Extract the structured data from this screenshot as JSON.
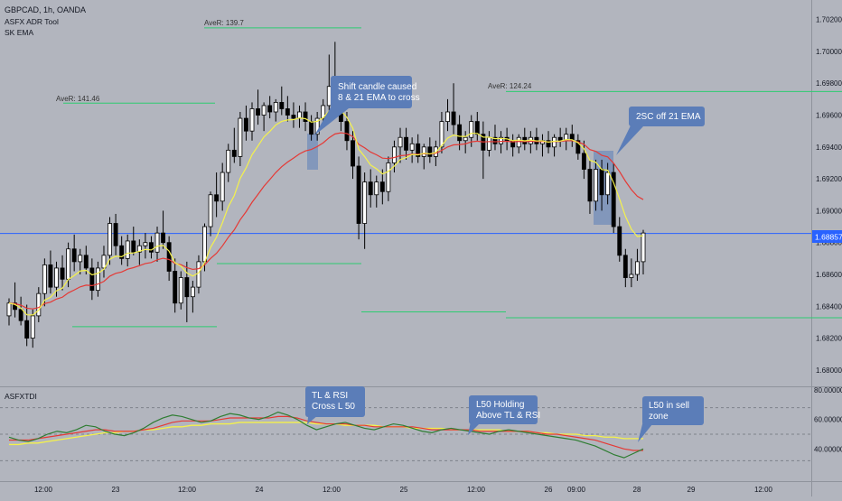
{
  "header": {
    "symbol": "GBPCAD, 1h, OANDA",
    "indicators": [
      "ASFX ADR Tool",
      "SK EMA"
    ]
  },
  "sub_panel": {
    "title": "ASFXTDI"
  },
  "colors": {
    "background": "#b2b5be",
    "candle": "#000000",
    "ema_fast": "#f5f24a",
    "ema_slow": "#e53935",
    "adr_line": "#2ecc71",
    "price_line": "#2962ff",
    "callout": "#5b7db8",
    "highlight": "#5b7db8",
    "rsi_fast": "#2e7d32",
    "rsi_signal": "#e53935",
    "rsi_base": "#f5f24a"
  },
  "annotations": {
    "adr_labels": [
      "AveR: 139.7",
      "AveR: 141.46",
      "AveR: 124.24"
    ],
    "callout_1": [
      "Shift candle caused",
      "8 & 21 EMA to cross"
    ],
    "callout_2": [
      "2SC off 21 EMA"
    ],
    "callout_3": [
      "TL & RSI",
      "Cross L 50"
    ],
    "callout_4": [
      "L50 Holding",
      "Above TL & RSI"
    ],
    "callout_5": [
      "L50 in sell",
      "zone"
    ]
  },
  "chart_data": [
    {
      "type": "candlestick",
      "title": "GBPCAD, 1h, OANDA",
      "price_axis_ticks": [
        "1.70200",
        "1.70000",
        "1.69800",
        "1.69600",
        "1.69400",
        "1.69200",
        "1.69000",
        "1.68800",
        "1.68600",
        "1.68400",
        "1.68200",
        "1.68000"
      ],
      "current_price_label": "1.68857",
      "current_price": 1.68857,
      "ylim": [
        1.6792,
        1.703
      ],
      "time_axis_ticks": [
        "12:00",
        "23",
        "12:00",
        "24",
        "12:00",
        "25",
        "12:00",
        "26",
        "09:00",
        "28",
        "29",
        "12:00"
      ],
      "candles": [
        [
          1.6834,
          1.6845,
          1.6828,
          1.6842
        ],
        [
          1.6842,
          1.6855,
          1.6833,
          1.6838
        ],
        [
          1.6838,
          1.6846,
          1.6828,
          1.6831
        ],
        [
          1.6831,
          1.6841,
          1.6815,
          1.682
        ],
        [
          1.682,
          1.6838,
          1.6814,
          1.6834
        ],
        [
          1.6834,
          1.6852,
          1.683,
          1.6848
        ],
        [
          1.6848,
          1.687,
          1.684,
          1.6866
        ],
        [
          1.6866,
          1.6875,
          1.6848,
          1.6852
        ],
        [
          1.6852,
          1.6868,
          1.6846,
          1.6864
        ],
        [
          1.6864,
          1.6872,
          1.685,
          1.6857
        ],
        [
          1.6857,
          1.688,
          1.6852,
          1.6876
        ],
        [
          1.6876,
          1.6885,
          1.6862,
          1.6868
        ],
        [
          1.6868,
          1.6876,
          1.686,
          1.6872
        ],
        [
          1.6872,
          1.6878,
          1.686,
          1.6864
        ],
        [
          1.6864,
          1.687,
          1.6844,
          1.685
        ],
        [
          1.685,
          1.6868,
          1.6846,
          1.6864
        ],
        [
          1.6864,
          1.6878,
          1.6858,
          1.6872
        ],
        [
          1.6872,
          1.6896,
          1.6866,
          1.6892
        ],
        [
          1.6892,
          1.6898,
          1.6872,
          1.6878
        ],
        [
          1.6878,
          1.6884,
          1.6866,
          1.687
        ],
        [
          1.687,
          1.6885,
          1.6865,
          1.6881
        ],
        [
          1.6881,
          1.689,
          1.6872,
          1.6874
        ],
        [
          1.6874,
          1.6882,
          1.6866,
          1.6878
        ],
        [
          1.6878,
          1.6886,
          1.687,
          1.688
        ],
        [
          1.688,
          1.6884,
          1.687,
          1.6874
        ],
        [
          1.6874,
          1.689,
          1.6868,
          1.6886
        ],
        [
          1.6886,
          1.69,
          1.6876,
          1.688
        ],
        [
          1.688,
          1.6884,
          1.6856,
          1.6862
        ],
        [
          1.6862,
          1.687,
          1.6836,
          1.6842
        ],
        [
          1.6842,
          1.6862,
          1.6838,
          1.6858
        ],
        [
          1.6858,
          1.6868,
          1.683,
          1.6846
        ],
        [
          1.6846,
          1.6856,
          1.6836,
          1.6852
        ],
        [
          1.6852,
          1.6872,
          1.6848,
          1.6868
        ],
        [
          1.6868,
          1.6892,
          1.6862,
          1.689
        ],
        [
          1.689,
          1.6912,
          1.6884,
          1.691
        ],
        [
          1.691,
          1.6924,
          1.6896,
          1.6906
        ],
        [
          1.6906,
          1.693,
          1.69,
          1.6924
        ],
        [
          1.6924,
          1.6942,
          1.6918,
          1.6938
        ],
        [
          1.6938,
          1.6952,
          1.693,
          1.6934
        ],
        [
          1.6934,
          1.6962,
          1.6928,
          1.6958
        ],
        [
          1.6958,
          1.6966,
          1.6944,
          1.695
        ],
        [
          1.695,
          1.6968,
          1.6944,
          1.6964
        ],
        [
          1.6964,
          1.6976,
          1.6954,
          1.696
        ],
        [
          1.696,
          1.6968,
          1.695,
          1.6966
        ],
        [
          1.6966,
          1.6972,
          1.6958,
          1.6962
        ],
        [
          1.6962,
          1.697,
          1.6956,
          1.6968
        ],
        [
          1.6968,
          1.6978,
          1.696,
          1.6964
        ],
        [
          1.6964,
          1.6972,
          1.6956,
          1.696
        ],
        [
          1.696,
          1.6968,
          1.6952,
          1.6958
        ],
        [
          1.6958,
          1.6966,
          1.6952,
          1.6962
        ],
        [
          1.6962,
          1.6968,
          1.695,
          1.6956
        ],
        [
          1.6956,
          1.696,
          1.6944,
          1.6948
        ],
        [
          1.6948,
          1.6962,
          1.6944,
          1.6958
        ],
        [
          1.6958,
          1.697,
          1.6952,
          1.6966
        ],
        [
          1.6966,
          1.6998,
          1.6962,
          1.6978
        ],
        [
          1.6978,
          1.7006,
          1.6964,
          1.6972
        ],
        [
          1.6972,
          1.698,
          1.695,
          1.6956
        ],
        [
          1.6956,
          1.6962,
          1.6938,
          1.6944
        ],
        [
          1.6944,
          1.695,
          1.692,
          1.6928
        ],
        [
          1.6928,
          1.6934,
          1.6882,
          1.6892
        ],
        [
          1.6892,
          1.6924,
          1.6876,
          1.6918
        ],
        [
          1.6918,
          1.6926,
          1.6902,
          1.691
        ],
        [
          1.691,
          1.6922,
          1.6902,
          1.6918
        ],
        [
          1.6918,
          1.6926,
          1.6904,
          1.6912
        ],
        [
          1.6912,
          1.6934,
          1.6906,
          1.693
        ],
        [
          1.693,
          1.6944,
          1.6924,
          1.694
        ],
        [
          1.694,
          1.6952,
          1.693,
          1.6946
        ],
        [
          1.6946,
          1.6952,
          1.6932,
          1.6938
        ],
        [
          1.6938,
          1.6946,
          1.693,
          1.6942
        ],
        [
          1.6942,
          1.6948,
          1.693,
          1.6934
        ],
        [
          1.6934,
          1.6942,
          1.6926,
          1.694
        ],
        [
          1.694,
          1.6946,
          1.693,
          1.6934
        ],
        [
          1.6934,
          1.6944,
          1.6928,
          1.694
        ],
        [
          1.694,
          1.6962,
          1.6936,
          1.6956
        ],
        [
          1.6956,
          1.697,
          1.695,
          1.6962
        ],
        [
          1.6962,
          1.698,
          1.6948,
          1.6954
        ],
        [
          1.6954,
          1.696,
          1.6938,
          1.6944
        ],
        [
          1.6944,
          1.695,
          1.6936,
          1.6946
        ],
        [
          1.6946,
          1.696,
          1.694,
          1.6956
        ],
        [
          1.6956,
          1.6962,
          1.6944,
          1.6948
        ],
        [
          1.6948,
          1.6956,
          1.692,
          1.6938
        ],
        [
          1.6938,
          1.695,
          1.6934,
          1.6946
        ],
        [
          1.6946,
          1.6954,
          1.6938,
          1.6942
        ],
        [
          1.6942,
          1.695,
          1.6936,
          1.6946
        ],
        [
          1.6946,
          1.6952,
          1.6938,
          1.6944
        ],
        [
          1.6944,
          1.6948,
          1.6934,
          1.694
        ],
        [
          1.694,
          1.6948,
          1.6936,
          1.6946
        ],
        [
          1.6946,
          1.6952,
          1.6938,
          1.6942
        ],
        [
          1.6942,
          1.695,
          1.6936,
          1.6946
        ],
        [
          1.6946,
          1.6952,
          1.6938,
          1.6942
        ],
        [
          1.6942,
          1.6948,
          1.6934,
          1.6944
        ],
        [
          1.6944,
          1.695,
          1.6936,
          1.694
        ],
        [
          1.694,
          1.6948,
          1.6934,
          1.6946
        ],
        [
          1.6946,
          1.6952,
          1.694,
          1.6944
        ],
        [
          1.6944,
          1.6952,
          1.6938,
          1.6948
        ],
        [
          1.6948,
          1.6954,
          1.694,
          1.6944
        ],
        [
          1.6944,
          1.6948,
          1.6932,
          1.6936
        ],
        [
          1.6936,
          1.6944,
          1.692,
          1.6926
        ],
        [
          1.6926,
          1.6932,
          1.6898,
          1.6906
        ],
        [
          1.6906,
          1.6932,
          1.69,
          1.6926
        ],
        [
          1.6926,
          1.6932,
          1.69,
          1.691
        ],
        [
          1.691,
          1.693,
          1.6904,
          1.6924
        ],
        [
          1.6924,
          1.693,
          1.6886,
          1.689
        ],
        [
          1.689,
          1.6896,
          1.6868,
          1.6872
        ],
        [
          1.6872,
          1.6876,
          1.6852,
          1.6858
        ],
        [
          1.6858,
          1.687,
          1.6852,
          1.686
        ],
        [
          1.686,
          1.6876,
          1.6856,
          1.6868
        ],
        [
          1.6868,
          1.6888,
          1.686,
          1.6886
        ]
      ],
      "ema_fast_label": "EMA 8",
      "ema_slow_label": "EMA 21",
      "adr_levels": [
        {
          "value": 1.70148,
          "x_range": [
            226,
            400
          ]
        },
        {
          "value": 1.69675,
          "x_range": [
            70,
            238
          ]
        },
        {
          "value": 1.69748,
          "x_range": [
            560,
            932
          ]
        },
        {
          "value": 1.68668,
          "x_range": [
            240,
            400
          ]
        },
        {
          "value": 1.68272,
          "x_range": [
            80,
            240
          ]
        },
        {
          "value": 1.68365,
          "x_range": [
            400,
            560
          ]
        },
        {
          "value": 1.68328,
          "x_range": [
            560,
            932
          ]
        }
      ]
    },
    {
      "type": "line",
      "title": "ASFXTDI",
      "ylim": [
        20,
        80
      ],
      "y_ticks": [
        "80.00000",
        "60.00000",
        "40.00000"
      ],
      "levels": [
        68,
        50,
        32
      ],
      "series": [
        {
          "values": [
            48,
            46,
            45,
            47,
            50,
            52,
            51,
            53,
            56,
            55,
            52,
            50,
            49,
            51,
            54,
            58,
            61,
            63,
            62,
            60,
            58,
            59,
            62,
            64,
            63,
            61,
            60,
            62,
            65,
            63,
            60,
            56,
            53,
            55,
            57,
            58,
            56,
            54,
            53,
            55,
            57,
            56,
            54,
            52,
            51,
            53,
            54,
            53,
            52,
            51,
            50,
            52,
            53,
            52,
            51,
            50,
            49,
            48,
            47,
            46,
            44,
            42,
            39,
            36,
            34,
            37,
            40
          ]
        },
        {
          "values": [
            46,
            46,
            46,
            47,
            48,
            49,
            50,
            51,
            52,
            53,
            53,
            52,
            52,
            52,
            53,
            54,
            56,
            58,
            59,
            59,
            59,
            59,
            60,
            61,
            61,
            61,
            61,
            61,
            62,
            62,
            61,
            59,
            58,
            57,
            57,
            57,
            56,
            56,
            55,
            55,
            55,
            55,
            55,
            54,
            53,
            53,
            53,
            53,
            53,
            52,
            52,
            52,
            52,
            52,
            52,
            51,
            50,
            50,
            49,
            48,
            47,
            46,
            44,
            42,
            40,
            39,
            39
          ]
        },
        {
          "values": [
            43,
            43,
            44,
            44,
            45,
            46,
            47,
            48,
            49,
            50,
            51,
            51,
            52,
            52,
            53,
            53,
            54,
            55,
            55,
            56,
            56,
            57,
            57,
            57,
            58,
            58,
            58,
            58,
            58,
            58,
            58,
            58,
            57,
            57,
            57,
            56,
            56,
            56,
            56,
            55,
            55,
            55,
            54,
            54,
            54,
            54,
            53,
            53,
            53,
            53,
            53,
            53,
            52,
            52,
            52,
            51,
            51,
            50,
            50,
            50,
            49,
            49,
            48,
            48,
            47,
            47,
            47
          ]
        }
      ]
    }
  ]
}
